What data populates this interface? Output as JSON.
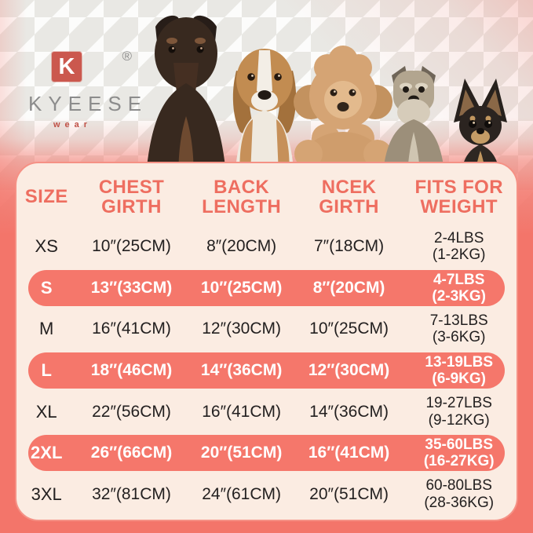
{
  "brand": {
    "logo_letter": "K",
    "registered_mark": "®",
    "name": "KYEESE",
    "subtitle": "wear"
  },
  "dogs": {
    "breeds": [
      "doberman",
      "beagle",
      "poodle",
      "schnauzer",
      "chihuahua"
    ]
  },
  "size_chart": {
    "columns": [
      {
        "lines": [
          "SIZE"
        ]
      },
      {
        "lines": [
          "CHEST",
          "GIRTH"
        ]
      },
      {
        "lines": [
          "BACK",
          "LENGTH"
        ]
      },
      {
        "lines": [
          "NCEK",
          "GIRTH"
        ]
      },
      {
        "lines": [
          "FITS FOR",
          "WEIGHT"
        ]
      }
    ],
    "rows": [
      {
        "size": "XS",
        "chest": "10″(25CM)",
        "back": "8″(20CM)",
        "neck": "7″(18CM)",
        "weight": [
          "2-4LBS",
          "(1-2KG)"
        ],
        "highlight": false
      },
      {
        "size": "S",
        "chest": "13″(33CM)",
        "back": "10″(25CM)",
        "neck": "8″(20CM)",
        "weight": [
          "4-7LBS",
          "(2-3KG)"
        ],
        "highlight": true
      },
      {
        "size": "M",
        "chest": "16″(41CM)",
        "back": "12″(30CM)",
        "neck": "10″(25CM)",
        "weight": [
          "7-13LBS",
          "(3-6KG)"
        ],
        "highlight": false
      },
      {
        "size": "L",
        "chest": "18″(46CM)",
        "back": "14″(36CM)",
        "neck": "12″(30CM)",
        "weight": [
          "13-19LBS",
          "(6-9KG)"
        ],
        "highlight": true
      },
      {
        "size": "XL",
        "chest": "22″(56CM)",
        "back": "16″(41CM)",
        "neck": "14″(36CM)",
        "weight": [
          "19-27LBS",
          "(9-12KG)"
        ],
        "highlight": false
      },
      {
        "size": "2XL",
        "chest": "26″(66CM)",
        "back": "20″(51CM)",
        "neck": "16″(41CM)",
        "weight": [
          "35-60LBS",
          "(16-27KG)"
        ],
        "highlight": true
      },
      {
        "size": "3XL",
        "chest": "32″(81CM)",
        "back": "24″(61CM)",
        "neck": "20″(51CM)",
        "weight": [
          "60-80LBS",
          "(28-36KG)"
        ],
        "highlight": false
      }
    ]
  },
  "chart_data": {
    "type": "table",
    "columns": [
      "SIZE",
      "CHEST GIRTH",
      "BACK LENGTH",
      "NCEK GIRTH",
      "FITS FOR WEIGHT"
    ],
    "rows": [
      [
        "XS",
        "10″(25CM)",
        "8″(20CM)",
        "7″(18CM)",
        "2-4LBS (1-2KG)"
      ],
      [
        "S",
        "13″(33CM)",
        "10″(25CM)",
        "8″(20CM)",
        "4-7LBS (2-3KG)"
      ],
      [
        "M",
        "16″(41CM)",
        "12″(30CM)",
        "10″(25CM)",
        "7-13LBS (3-6KG)"
      ],
      [
        "L",
        "18″(46CM)",
        "14″(36CM)",
        "12″(30CM)",
        "13-19LBS (6-9KG)"
      ],
      [
        "XL",
        "22″(56CM)",
        "16″(41CM)",
        "14″(36CM)",
        "19-27LBS (9-12KG)"
      ],
      [
        "2XL",
        "26″(66CM)",
        "20″(51CM)",
        "16″(41CM)",
        "35-60LBS (16-27KG)"
      ],
      [
        "3XL",
        "32″(81CM)",
        "24″(61CM)",
        "20″(51CM)",
        "60-80LBS (28-36KG)"
      ]
    ],
    "highlighted_rows": [
      "S",
      "L",
      "2XL"
    ]
  },
  "colors": {
    "coral_background": "#f3756a",
    "highlight_pill": "#f5776b",
    "panel_background": "#fbece2",
    "header_text": "#ee6e60",
    "cell_text": "#232020",
    "logo_red": "#cb584e",
    "brand_gray": "#8c8c8c",
    "houndstooth_gray": "#e9e8e4"
  }
}
